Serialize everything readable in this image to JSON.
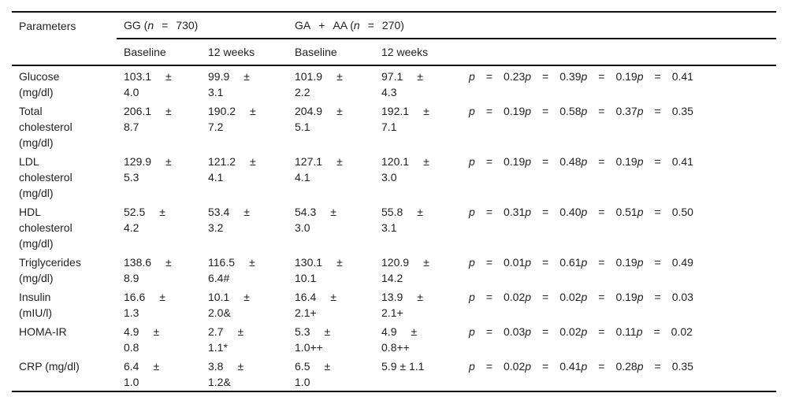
{
  "header": {
    "parameters": "Parameters",
    "gg_label": "GG (",
    "gg_n_var": "n",
    "gg_eq": "=",
    "gg_n": "730)",
    "ga_label": "GA",
    "ga_plus": "+",
    "ga_label2": "AA (",
    "ga_n_var": "n",
    "ga_eq": "=",
    "ga_n": "270)",
    "sub": [
      "Baseline",
      "12 weeks",
      "Baseline",
      "12 weeks"
    ]
  },
  "pm_symbol": "±",
  "p_symbol": "p",
  "eq_symbol": "=",
  "rows": [
    {
      "param": [
        "Glucose",
        "(mg/dl)"
      ],
      "cells": [
        [
          "103.1",
          "4.0"
        ],
        [
          "99.9",
          "3.1"
        ],
        [
          "101.9",
          "2.2"
        ],
        [
          "97.1",
          "4.3"
        ]
      ],
      "p": [
        "0.23",
        "0.39",
        "0.19",
        "0.41"
      ]
    },
    {
      "param": [
        "Total",
        "cholesterol",
        "(mg/dl)"
      ],
      "cells": [
        [
          "206.1",
          "8.7"
        ],
        [
          "190.2",
          "7.2"
        ],
        [
          "204.9",
          "5.1"
        ],
        [
          "192.1",
          "7.1"
        ]
      ],
      "p": [
        "0.19",
        "0.58",
        "0.37",
        "0.35"
      ]
    },
    {
      "param": [
        "LDL",
        "cholesterol",
        "(mg/dl)"
      ],
      "cells": [
        [
          "129.9",
          "5.3"
        ],
        [
          "121.2",
          "4.1"
        ],
        [
          "127.1",
          "4.1"
        ],
        [
          "120.1",
          "3.0"
        ]
      ],
      "p": [
        "0.19",
        "0.48",
        "0.19",
        "0.41"
      ]
    },
    {
      "param": [
        "HDL",
        "cholesterol",
        "(mg/dl)"
      ],
      "cells": [
        [
          "52.5",
          "4.2"
        ],
        [
          "53.4",
          "3.2"
        ],
        [
          "54.3",
          "3.0"
        ],
        [
          "55.8",
          "3.1"
        ]
      ],
      "p": [
        "0.31",
        "0.40",
        "0.51",
        "0.50"
      ]
    },
    {
      "param": [
        "Triglycerides",
        "(mg/dl)"
      ],
      "cells": [
        [
          "138.6",
          "8.9"
        ],
        [
          "116.5",
          "6.4#"
        ],
        [
          "130.1",
          "10.1"
        ],
        [
          "120.9",
          "14.2"
        ]
      ],
      "p": [
        "0.01",
        "0.61",
        "0.19",
        "0.49"
      ]
    },
    {
      "param": [
        "Insulin",
        "(mIU/l)"
      ],
      "cells": [
        [
          "16.6",
          "1.3"
        ],
        [
          "10.1",
          "2.0&"
        ],
        [
          "16.4",
          "2.1+"
        ],
        [
          "13.9",
          "2.1+"
        ]
      ],
      "p": [
        "0.02",
        "0.02",
        "0.19",
        "0.03"
      ]
    },
    {
      "param": [
        "HOMA-IR"
      ],
      "cells": [
        [
          "4.9",
          "0.8"
        ],
        [
          "2.7",
          "1.1*"
        ],
        [
          "5.3",
          "1.0++"
        ],
        [
          "4.9",
          "0.8++"
        ]
      ],
      "p": [
        "0.03",
        "0.02",
        "0.11",
        "0.02"
      ]
    },
    {
      "param": [
        "CRP (mg/dl)"
      ],
      "cells": [
        [
          "6.4",
          "1.0"
        ],
        [
          "3.8",
          "1.2&"
        ],
        [
          "6.5",
          "1.0"
        ],
        [
          "5.9 ± 1.1"
        ]
      ],
      "p": [
        "0.02",
        "0.41",
        "0.28",
        "0.35"
      ]
    }
  ]
}
